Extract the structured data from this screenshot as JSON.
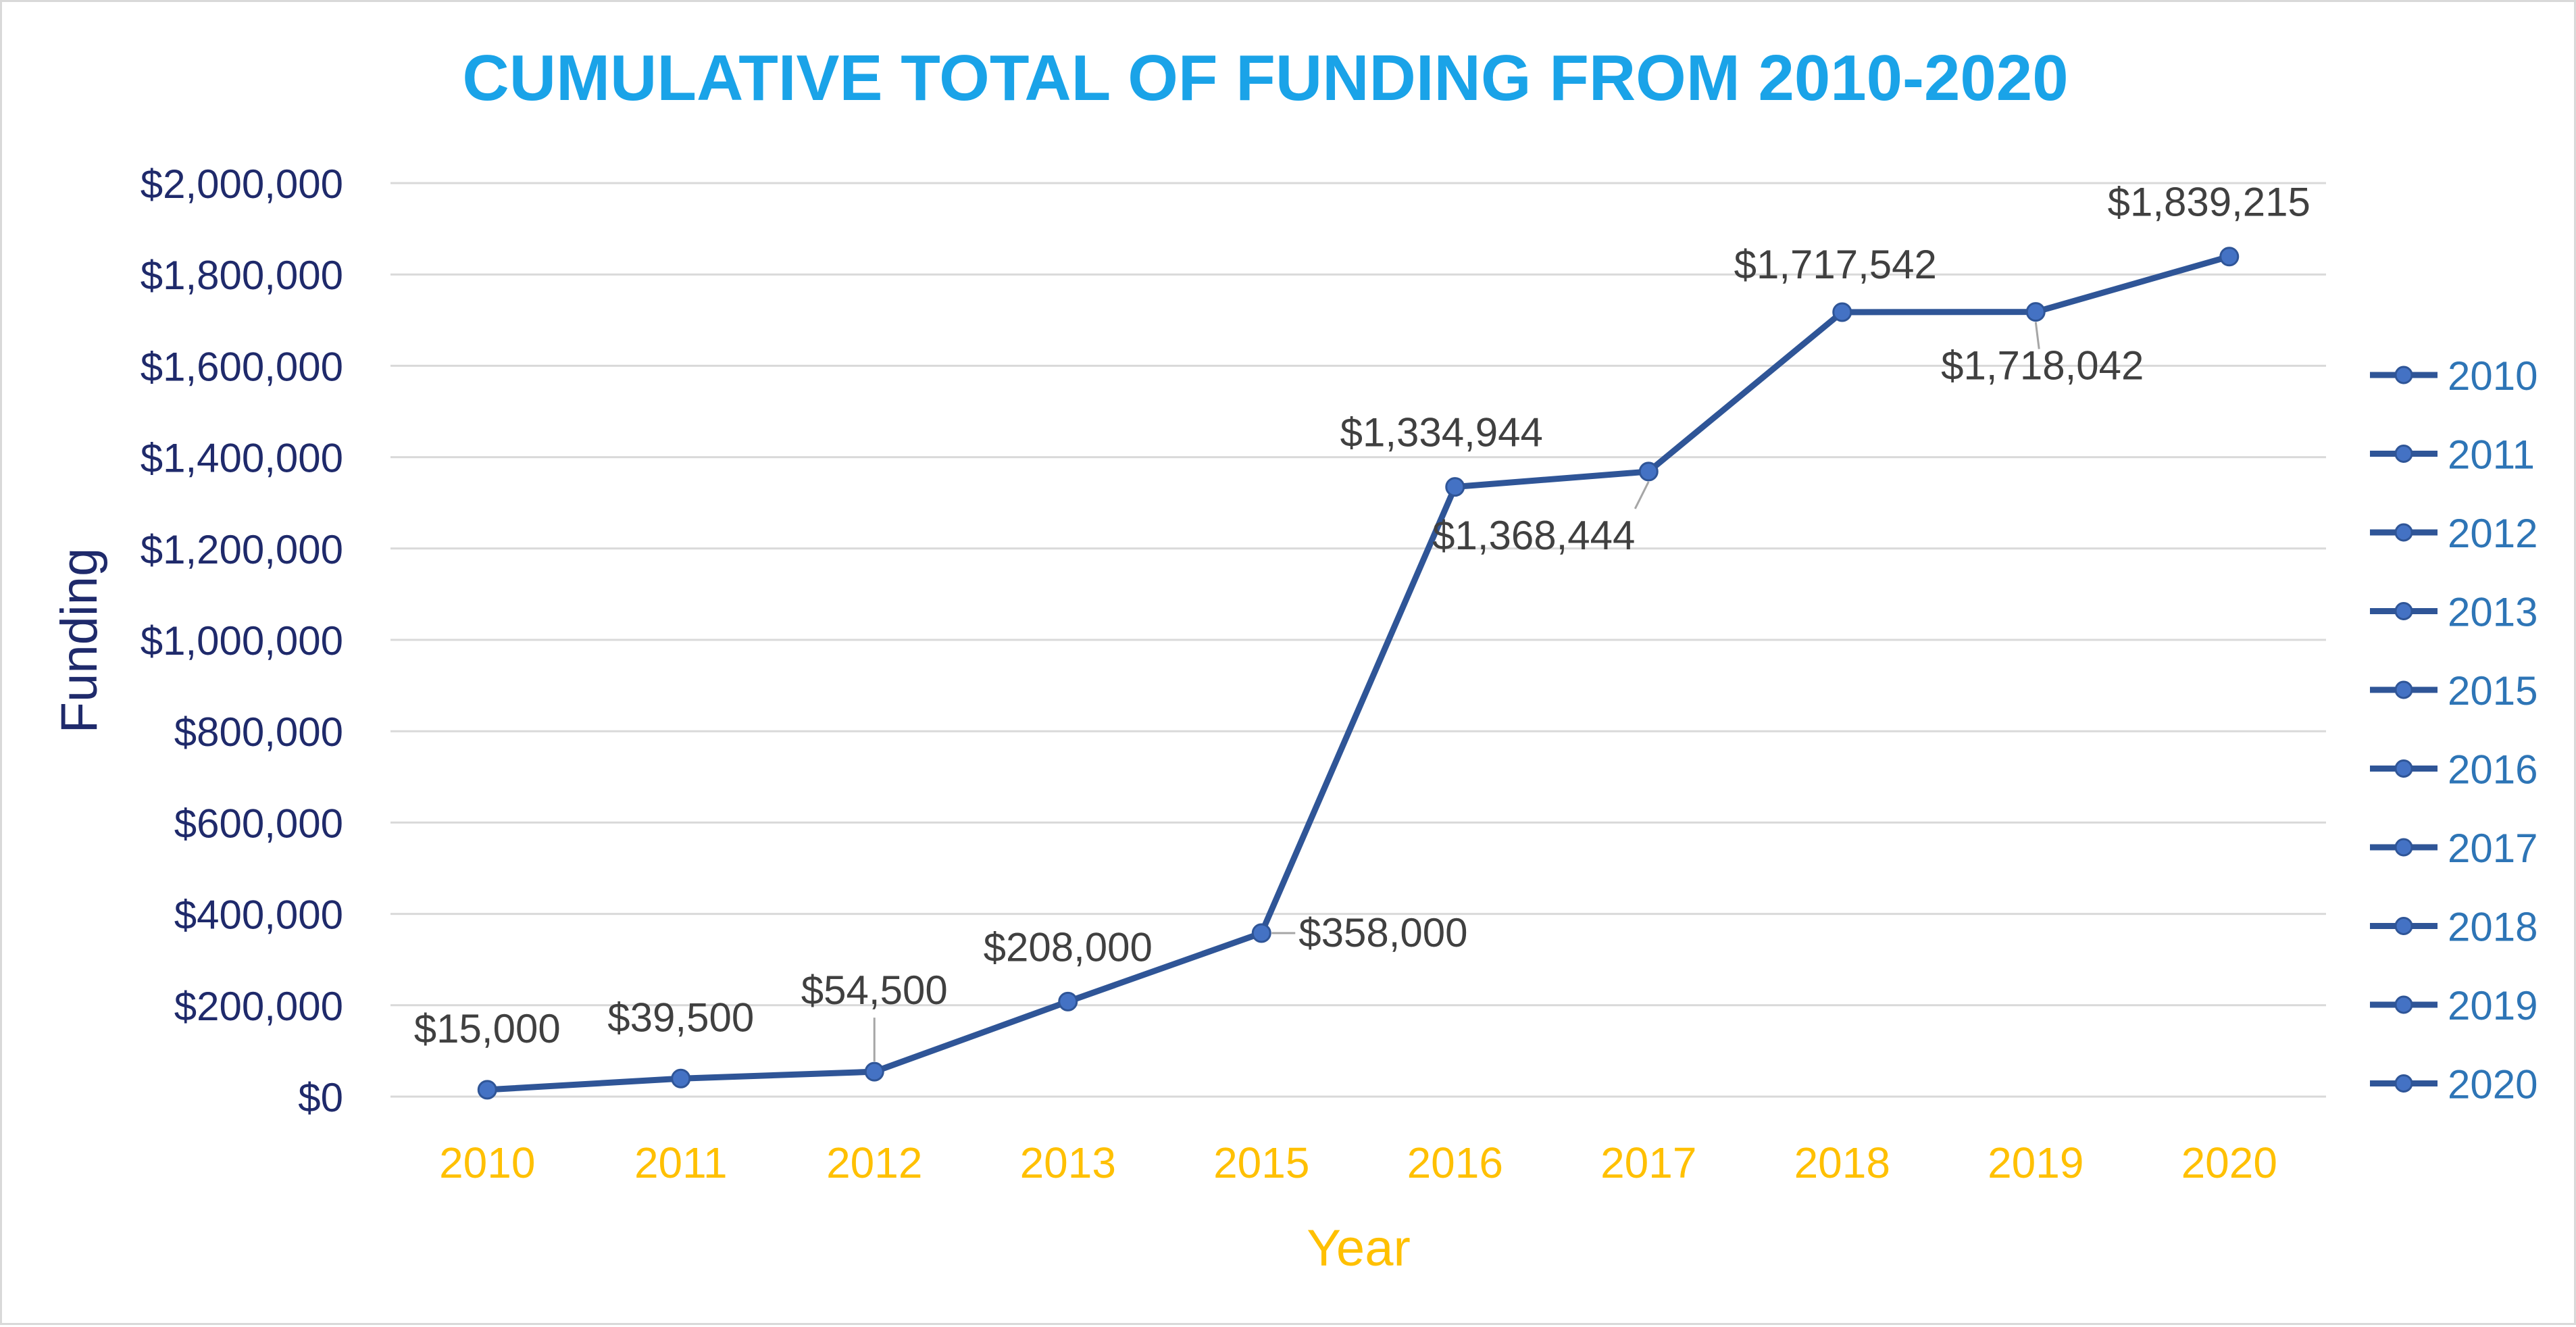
{
  "chart_data": {
    "type": "line",
    "title": "CUMULATIVE TOTAL OF FUNDING FROM 2010-2020",
    "xlabel": "Year",
    "ylabel": "Funding",
    "categories": [
      "2010",
      "2011",
      "2012",
      "2013",
      "2015",
      "2016",
      "2017",
      "2018",
      "2019",
      "2020"
    ],
    "values": [
      15000,
      39500,
      54500,
      208000,
      358000,
      1334944,
      1368444,
      1717542,
      1718042,
      1839215
    ],
    "data_labels": [
      "$15,000",
      "$39,500",
      "$54,500",
      "$208,000",
      "$358,000",
      "$1,334,944",
      "$1,368,444",
      "$1,717,542",
      "$1,718,042",
      "$1,839,215"
    ],
    "ylim": [
      0,
      2000000
    ],
    "y_ticks": [
      0,
      200000,
      400000,
      600000,
      800000,
      1000000,
      1200000,
      1400000,
      1600000,
      1800000,
      2000000
    ],
    "y_tick_labels": [
      "$0",
      "$200,000",
      "$400,000",
      "$600,000",
      "$800,000",
      "$1,000,000",
      "$1,200,000",
      "$1,400,000",
      "$1,600,000",
      "$1,800,000",
      "$2,000,000"
    ],
    "legend": [
      "2010",
      "2011",
      "2012",
      "2013",
      "2015",
      "2016",
      "2017",
      "2018",
      "2019",
      "2020"
    ],
    "legend_position": "right",
    "grid": true,
    "colors": {
      "title": "#1aa3e8",
      "line": "#2f5597",
      "marker": "#4472c4",
      "y_axis_text": "#1f2a6b",
      "x_axis_text": "#ffc000",
      "legend_text": "#2e75b6",
      "data_label": "#404040",
      "grid": "#d9d9d9"
    }
  }
}
